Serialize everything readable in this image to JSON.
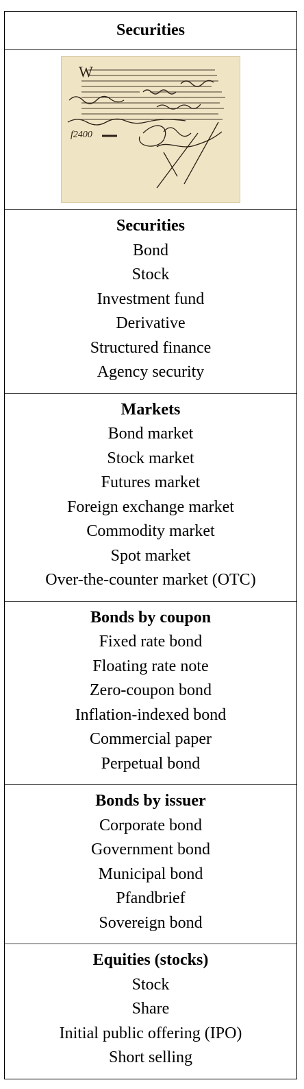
{
  "title": "Securities",
  "image": {
    "description_icon": "historic-share-certificate-image",
    "amount_text": "f2400",
    "colors": {
      "paper": "#efe4c4",
      "paper_edge": "#d8c89e",
      "ink": "#2b2116"
    }
  },
  "sections": [
    {
      "heading": "Securities",
      "items": [
        "Bond",
        "Stock",
        "Investment fund",
        "Derivative",
        "Structured finance",
        "Agency security"
      ]
    },
    {
      "heading": "Markets",
      "items": [
        "Bond market",
        "Stock market",
        "Futures market",
        "Foreign exchange market",
        "Commodity market",
        "Spot market",
        "Over-the-counter market (OTC)"
      ]
    },
    {
      "heading": "Bonds by coupon",
      "items": [
        "Fixed rate bond",
        "Floating rate note",
        "Zero-coupon bond",
        "Inflation-indexed bond",
        "Commercial paper",
        "Perpetual bond"
      ]
    },
    {
      "heading": "Bonds by issuer",
      "items": [
        "Corporate bond",
        "Government bond",
        "Municipal bond",
        "Pfandbrief",
        "Sovereign bond"
      ]
    },
    {
      "heading": "Equities (stocks)",
      "items": [
        "Stock",
        "Share",
        "Initial public offering (IPO)",
        "Short selling"
      ]
    }
  ]
}
